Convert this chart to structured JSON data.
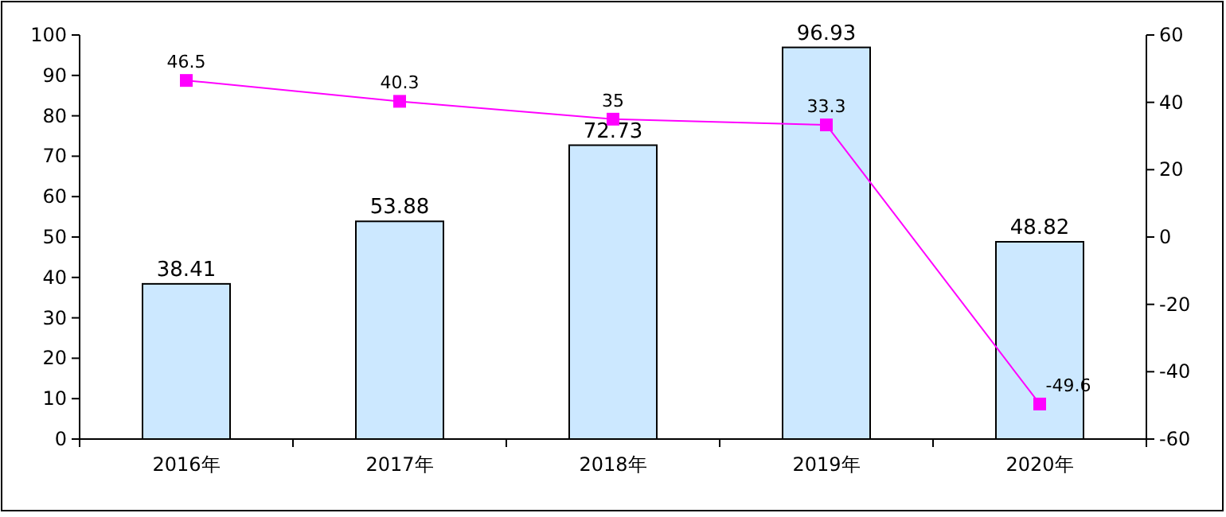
{
  "chart_data": {
    "type": "bar",
    "categories": [
      "2016年",
      "2017年",
      "2018年",
      "2019年",
      "2020年"
    ],
    "series": [
      {
        "color": "#cce8ff",
        "values": [
          38.41,
          53.88,
          72.73,
          96.93,
          48.82
        ]
      },
      {
        "type": "line",
        "axis": "y2",
        "color": "#ff00ff",
        "marker": "square",
        "values": [
          46.5,
          40.3,
          35,
          33.3,
          -49.6
        ]
      }
    ],
    "ylim": [
      0,
      100
    ],
    "yticks": [
      0,
      10,
      20,
      30,
      40,
      50,
      60,
      70,
      80,
      90,
      100
    ],
    "y2lim": [
      -60,
      60
    ],
    "y2ticks": [
      -60,
      -40,
      -20,
      0,
      20,
      40,
      60
    ],
    "data_labels": true,
    "grid": false
  }
}
